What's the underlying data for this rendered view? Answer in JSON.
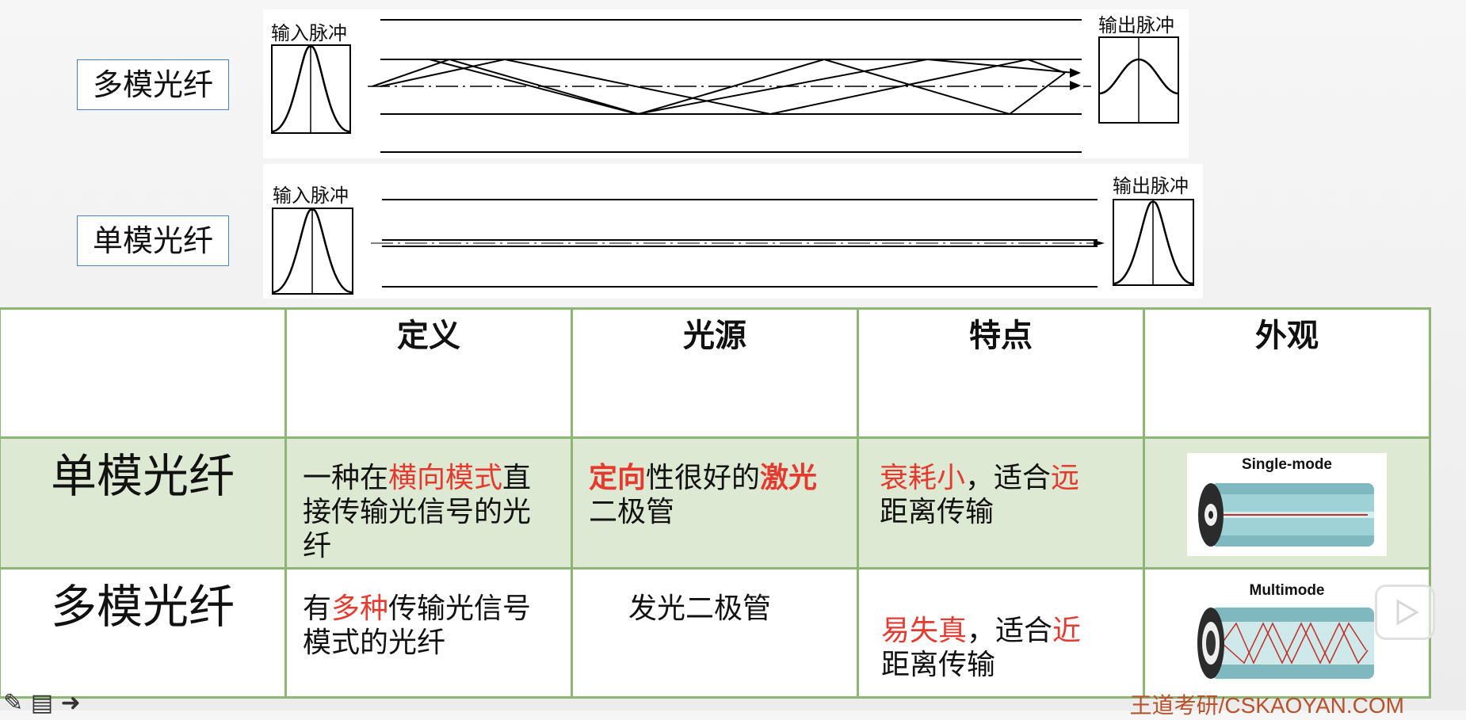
{
  "top_diagram": {
    "multimode": {
      "label": "多模光纤",
      "input_caption": "输入脉冲",
      "output_caption": "输出脉冲"
    },
    "singlemode": {
      "label": "单模光纤",
      "input_caption": "输入脉冲",
      "output_caption": "输出脉冲"
    }
  },
  "table": {
    "headers": [
      "",
      "定义",
      "光源",
      "特点",
      "外观"
    ],
    "rows": [
      {
        "name": "单模光纤",
        "definition": {
          "pre": "一种在",
          "hl": "横向模式",
          "post": "直接传输光信号的光纤"
        },
        "light_source": {
          "hl1": "定向",
          "mid": "性很好的",
          "hl2": "激光",
          "post": "二极管"
        },
        "feature": {
          "hl1": "衰耗小",
          "mid": "，适合",
          "hl2": "远",
          "post": "距离传输"
        },
        "appearance_caption": "Single-mode"
      },
      {
        "name": "多模光纤",
        "definition": {
          "pre": "有",
          "hl": "多种",
          "post": "传输光信号模式的光纤"
        },
        "light_source": {
          "text": "发光二极管"
        },
        "feature": {
          "hl1": "易失真",
          "mid": "，适合",
          "hl2": "近",
          "post": "距离传输"
        },
        "appearance_caption": "Multimode"
      }
    ]
  },
  "watermark": "王道考研/CSKAOYAN.COM",
  "colors": {
    "accent_red": "#e43a2f",
    "table_border": "#8db573",
    "single_row_bg": "#dde9d3"
  }
}
